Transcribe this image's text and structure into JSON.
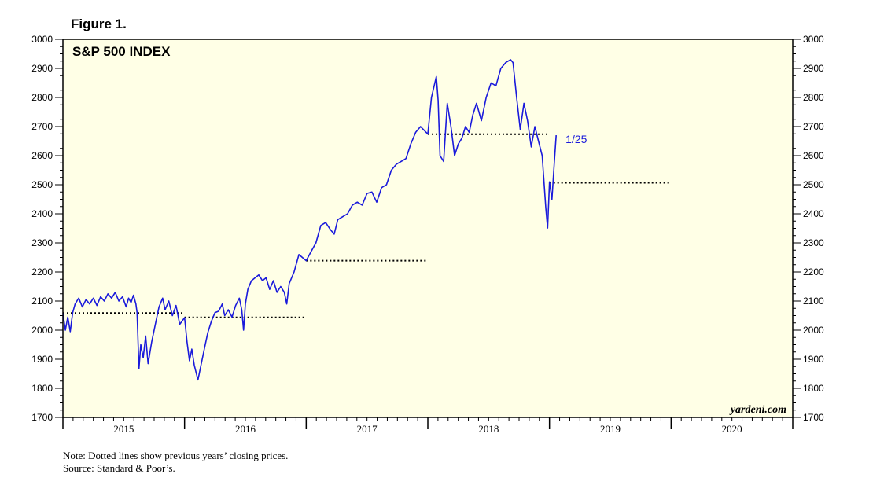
{
  "figure_label": "Figure 1.",
  "chart_data": {
    "type": "line",
    "title": "S&P 500 INDEX",
    "xlabel": "",
    "ylabel": "",
    "ylim": [
      1700,
      3000
    ],
    "y_ticks": [
      1700,
      1800,
      1900,
      2000,
      2100,
      2200,
      2300,
      2400,
      2500,
      2600,
      2700,
      2800,
      2900,
      3000
    ],
    "x_categories": [
      "2015",
      "2016",
      "2017",
      "2018",
      "2019",
      "2020"
    ],
    "xlim": [
      2015.0,
      2021.0
    ],
    "grid": false,
    "series": [
      {
        "color": "#1a1adb",
        "points": [
          [
            2015.0,
            2058
          ],
          [
            2015.02,
            2000
          ],
          [
            2015.04,
            2045
          ],
          [
            2015.06,
            1995
          ],
          [
            2015.08,
            2060
          ],
          [
            2015.1,
            2090
          ],
          [
            2015.13,
            2110
          ],
          [
            2015.16,
            2080
          ],
          [
            2015.19,
            2105
          ],
          [
            2015.22,
            2090
          ],
          [
            2015.25,
            2110
          ],
          [
            2015.28,
            2085
          ],
          [
            2015.31,
            2115
          ],
          [
            2015.34,
            2100
          ],
          [
            2015.37,
            2125
          ],
          [
            2015.4,
            2110
          ],
          [
            2015.43,
            2130
          ],
          [
            2015.46,
            2100
          ],
          [
            2015.49,
            2115
          ],
          [
            2015.52,
            2080
          ],
          [
            2015.54,
            2110
          ],
          [
            2015.56,
            2095
          ],
          [
            2015.58,
            2120
          ],
          [
            2015.6,
            2090
          ],
          [
            2015.61,
            2060
          ],
          [
            2015.625,
            1867
          ],
          [
            2015.64,
            1950
          ],
          [
            2015.66,
            1905
          ],
          [
            2015.68,
            1980
          ],
          [
            2015.7,
            1885
          ],
          [
            2015.73,
            1960
          ],
          [
            2015.76,
            2020
          ],
          [
            2015.79,
            2080
          ],
          [
            2015.82,
            2110
          ],
          [
            2015.84,
            2070
          ],
          [
            2015.87,
            2100
          ],
          [
            2015.9,
            2050
          ],
          [
            2015.93,
            2085
          ],
          [
            2015.96,
            2020
          ],
          [
            2016.0,
            2043
          ],
          [
            2016.02,
            1960
          ],
          [
            2016.04,
            1895
          ],
          [
            2016.06,
            1935
          ],
          [
            2016.08,
            1880
          ],
          [
            2016.11,
            1829
          ],
          [
            2016.13,
            1870
          ],
          [
            2016.16,
            1930
          ],
          [
            2016.19,
            1990
          ],
          [
            2016.22,
            2030
          ],
          [
            2016.25,
            2060
          ],
          [
            2016.28,
            2065
          ],
          [
            2016.31,
            2090
          ],
          [
            2016.33,
            2050
          ],
          [
            2016.36,
            2070
          ],
          [
            2016.39,
            2045
          ],
          [
            2016.42,
            2085
          ],
          [
            2016.45,
            2110
          ],
          [
            2016.47,
            2070
          ],
          [
            2016.485,
            2000
          ],
          [
            2016.5,
            2090
          ],
          [
            2016.52,
            2140
          ],
          [
            2016.55,
            2170
          ],
          [
            2016.58,
            2180
          ],
          [
            2016.61,
            2190
          ],
          [
            2016.64,
            2170
          ],
          [
            2016.67,
            2180
          ],
          [
            2016.7,
            2140
          ],
          [
            2016.73,
            2170
          ],
          [
            2016.76,
            2130
          ],
          [
            2016.79,
            2150
          ],
          [
            2016.82,
            2130
          ],
          [
            2016.84,
            2090
          ],
          [
            2016.86,
            2160
          ],
          [
            2016.9,
            2200
          ],
          [
            2016.94,
            2260
          ],
          [
            2017.0,
            2239
          ],
          [
            2017.04,
            2270
          ],
          [
            2017.08,
            2300
          ],
          [
            2017.12,
            2360
          ],
          [
            2017.16,
            2370
          ],
          [
            2017.2,
            2345
          ],
          [
            2017.23,
            2330
          ],
          [
            2017.26,
            2380
          ],
          [
            2017.3,
            2390
          ],
          [
            2017.34,
            2400
          ],
          [
            2017.38,
            2430
          ],
          [
            2017.42,
            2440
          ],
          [
            2017.46,
            2430
          ],
          [
            2017.5,
            2470
          ],
          [
            2017.54,
            2475
          ],
          [
            2017.58,
            2440
          ],
          [
            2017.62,
            2490
          ],
          [
            2017.66,
            2500
          ],
          [
            2017.7,
            2550
          ],
          [
            2017.74,
            2570
          ],
          [
            2017.78,
            2580
          ],
          [
            2017.82,
            2590
          ],
          [
            2017.86,
            2640
          ],
          [
            2017.9,
            2680
          ],
          [
            2017.94,
            2700
          ],
          [
            2018.0,
            2674
          ],
          [
            2018.03,
            2800
          ],
          [
            2018.07,
            2872
          ],
          [
            2018.085,
            2790
          ],
          [
            2018.1,
            2600
          ],
          [
            2018.13,
            2580
          ],
          [
            2018.16,
            2780
          ],
          [
            2018.19,
            2700
          ],
          [
            2018.22,
            2600
          ],
          [
            2018.25,
            2640
          ],
          [
            2018.28,
            2660
          ],
          [
            2018.31,
            2700
          ],
          [
            2018.34,
            2680
          ],
          [
            2018.37,
            2740
          ],
          [
            2018.4,
            2780
          ],
          [
            2018.44,
            2720
          ],
          [
            2018.48,
            2800
          ],
          [
            2018.52,
            2850
          ],
          [
            2018.56,
            2840
          ],
          [
            2018.6,
            2900
          ],
          [
            2018.64,
            2920
          ],
          [
            2018.68,
            2930
          ],
          [
            2018.7,
            2920
          ],
          [
            2018.73,
            2800
          ],
          [
            2018.76,
            2690
          ],
          [
            2018.79,
            2780
          ],
          [
            2018.82,
            2720
          ],
          [
            2018.85,
            2630
          ],
          [
            2018.88,
            2700
          ],
          [
            2018.91,
            2650
          ],
          [
            2018.94,
            2600
          ],
          [
            2018.97,
            2420
          ],
          [
            2018.985,
            2351
          ],
          [
            2019.0,
            2510
          ],
          [
            2019.02,
            2450
          ],
          [
            2019.04,
            2580
          ],
          [
            2019.055,
            2670
          ]
        ]
      }
    ],
    "reference_lines": [
      {
        "y": 2058.9,
        "x_start": 2015.0,
        "x_end": 2016.0
      },
      {
        "y": 2043.9,
        "x_start": 2016.0,
        "x_end": 2017.0
      },
      {
        "y": 2238.8,
        "x_start": 2017.0,
        "x_end": 2018.0
      },
      {
        "y": 2673.6,
        "x_start": 2018.0,
        "x_end": 2019.0
      },
      {
        "y": 2506.9,
        "x_start": 2019.0,
        "x_end": 2020.0
      }
    ],
    "annotations": [
      {
        "text": "1/25",
        "color": "#1a1adb"
      }
    ],
    "colors": {
      "plot_background": "#ffffe6",
      "line": "#1a1adb",
      "reference": "#000000"
    },
    "watermark": "yardeni.com"
  },
  "notes": [
    "Note: Dotted lines show previous years’ closing prices.",
    "Source: Standard & Poor’s."
  ]
}
